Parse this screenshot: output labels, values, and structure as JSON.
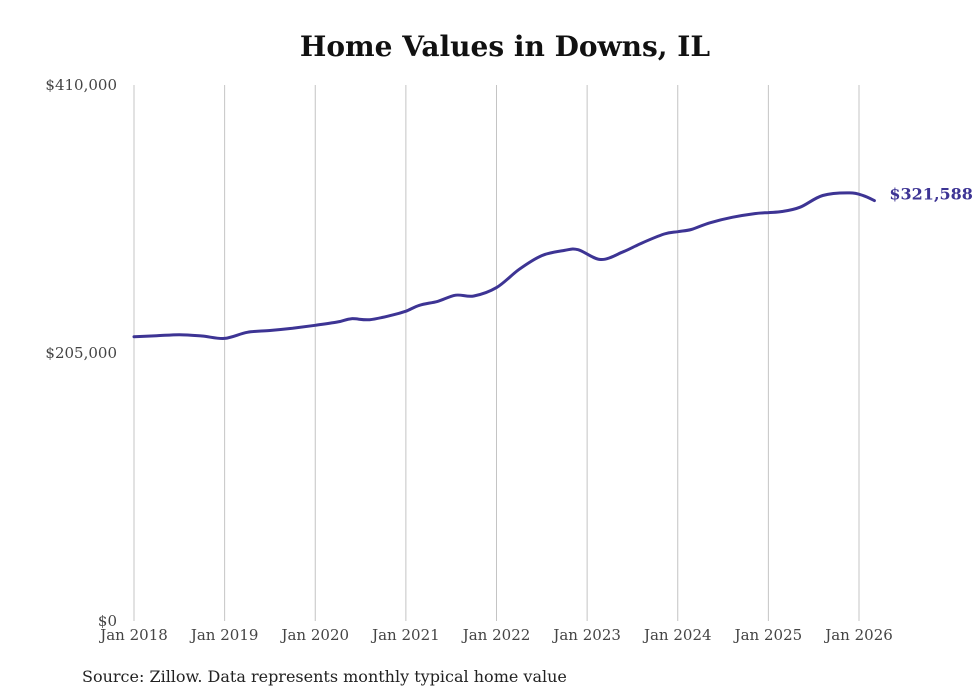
{
  "chart_data": {
    "type": "line",
    "title": "Home Values in Downs, IL",
    "xlabel": "",
    "ylabel": "",
    "x_ticks": [
      "Jan 2018",
      "Jan 2019",
      "Jan 2020",
      "Jan 2021",
      "Jan 2022",
      "Jan 2023",
      "Jan 2024",
      "Jan 2025",
      "Jan 2026"
    ],
    "y_ticks": [
      {
        "value": 0,
        "label": "$0"
      },
      {
        "value": 205000,
        "label": "$205,000"
      },
      {
        "value": 410000,
        "label": "$410,000"
      }
    ],
    "ylim": [
      0,
      410000
    ],
    "xlim": [
      2018.0,
      2026.17
    ],
    "grid": "vertical",
    "series": [
      {
        "name": "Typical home value",
        "color": "#3d3494",
        "end_label": "$321,588",
        "points": [
          [
            2018.0,
            217500
          ],
          [
            2018.25,
            218200
          ],
          [
            2018.5,
            219000
          ],
          [
            2018.75,
            218000
          ],
          [
            2019.0,
            216200
          ],
          [
            2019.25,
            220800
          ],
          [
            2019.5,
            222200
          ],
          [
            2019.75,
            224000
          ],
          [
            2020.0,
            226200
          ],
          [
            2020.25,
            228800
          ],
          [
            2020.4,
            231200
          ],
          [
            2020.6,
            230500
          ],
          [
            2020.85,
            234000
          ],
          [
            2021.0,
            237000
          ],
          [
            2021.15,
            241500
          ],
          [
            2021.35,
            244500
          ],
          [
            2021.55,
            249200
          ],
          [
            2021.75,
            248600
          ],
          [
            2022.0,
            255000
          ],
          [
            2022.25,
            269000
          ],
          [
            2022.5,
            279500
          ],
          [
            2022.75,
            283500
          ],
          [
            2022.9,
            284000
          ],
          [
            2023.15,
            276500
          ],
          [
            2023.4,
            282500
          ],
          [
            2023.6,
            289000
          ],
          [
            2023.85,
            296000
          ],
          [
            2024.0,
            297800
          ],
          [
            2024.15,
            299500
          ],
          [
            2024.35,
            304500
          ],
          [
            2024.6,
            308800
          ],
          [
            2024.85,
            311600
          ],
          [
            2025.0,
            312400
          ],
          [
            2025.15,
            313200
          ],
          [
            2025.35,
            316500
          ],
          [
            2025.6,
            325500
          ],
          [
            2025.9,
            327500
          ],
          [
            2026.05,
            325300
          ],
          [
            2026.17,
            321588
          ]
        ]
      }
    ]
  },
  "footer": {
    "source": "Source: Zillow. Data represents monthly typical home value"
  }
}
